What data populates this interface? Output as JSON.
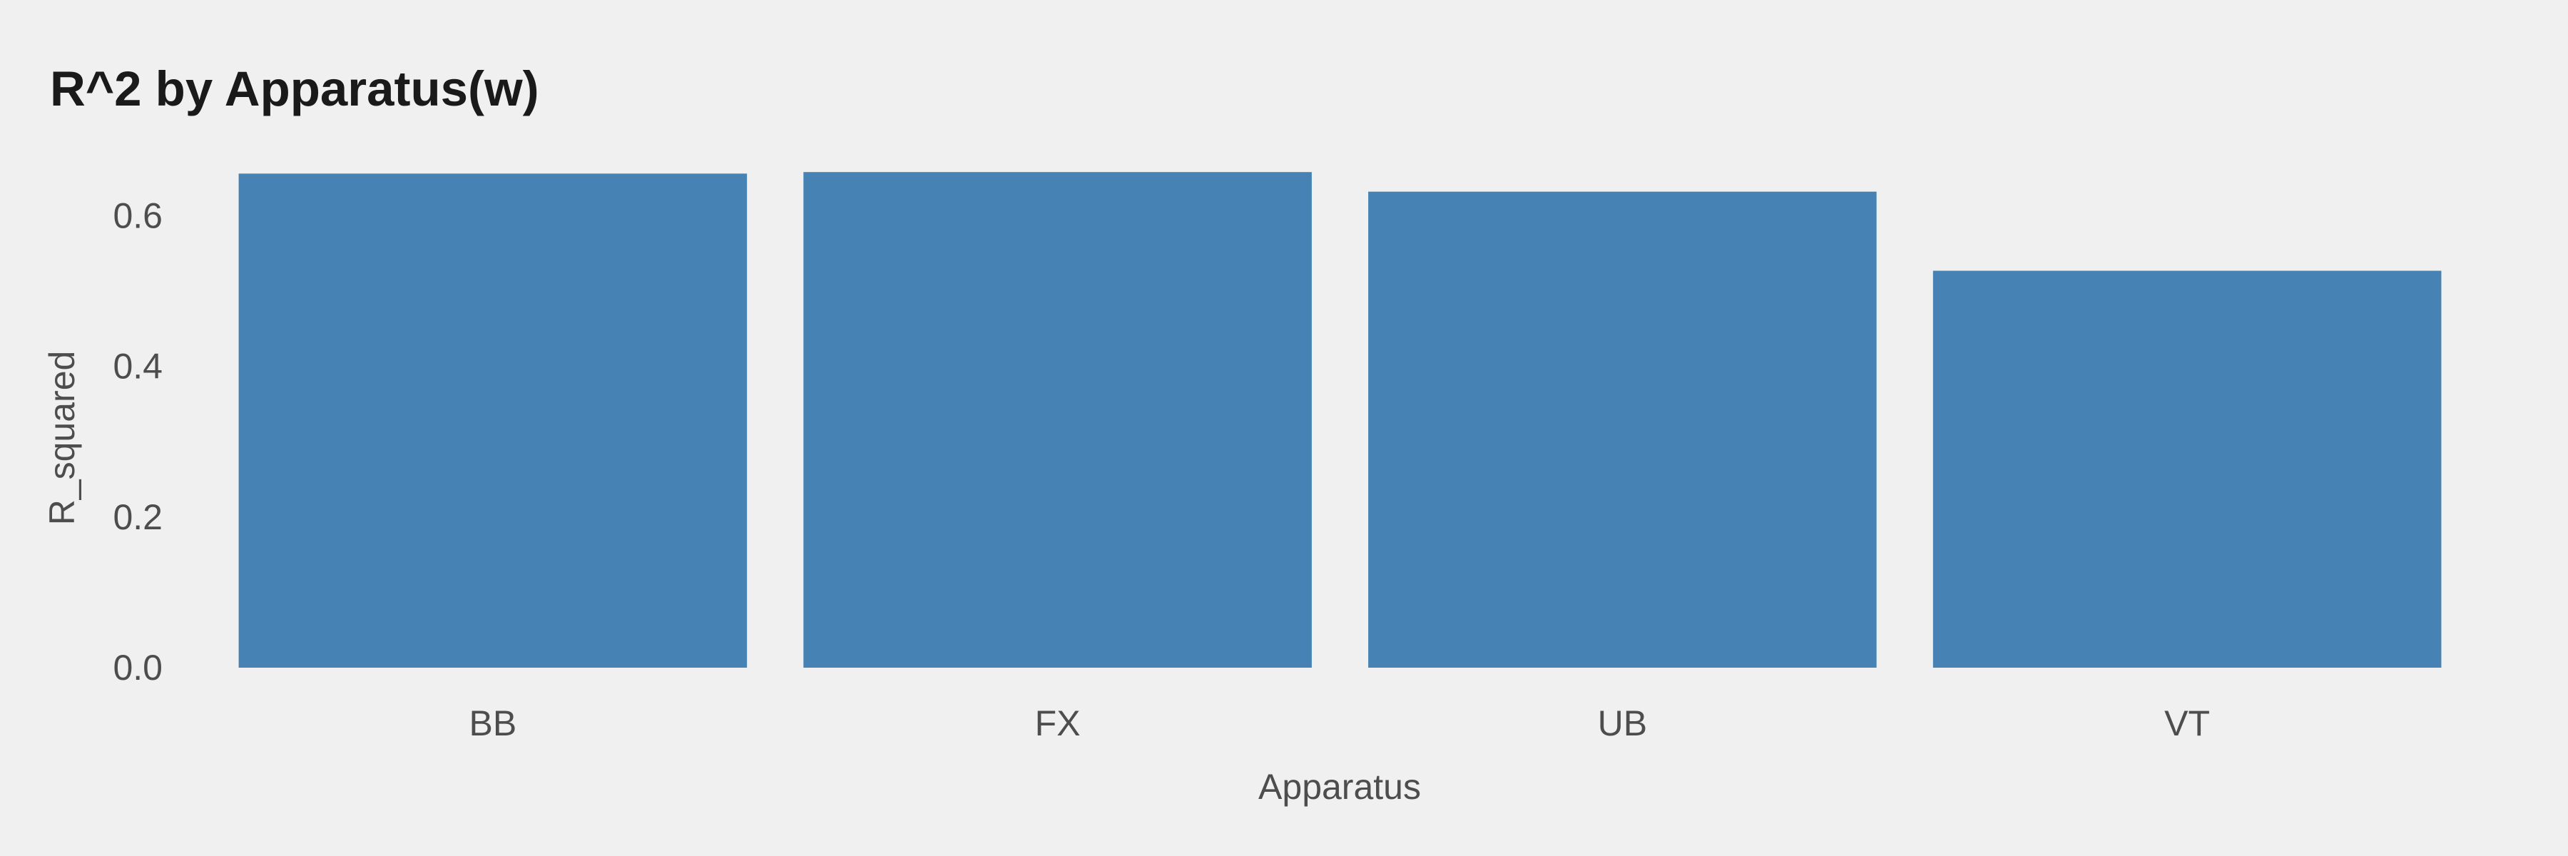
{
  "chart_data": {
    "type": "bar",
    "title": "R^2 by Apparatus(w)",
    "xlabel": "Apparatus",
    "ylabel": "R_squared",
    "categories": [
      "BB",
      "FX",
      "UB",
      "VT"
    ],
    "values": [
      0.656,
      0.658,
      0.632,
      0.527
    ],
    "ylim": [
      0,
      0.68
    ],
    "yticks": [
      0.0,
      0.2,
      0.4,
      0.6
    ],
    "ytick_labels": [
      "0.0",
      "0.2",
      "0.4",
      "0.6"
    ],
    "grid": false,
    "legend": "none",
    "bar_color": "#4682b4",
    "background_color": "#f0f0f0"
  }
}
